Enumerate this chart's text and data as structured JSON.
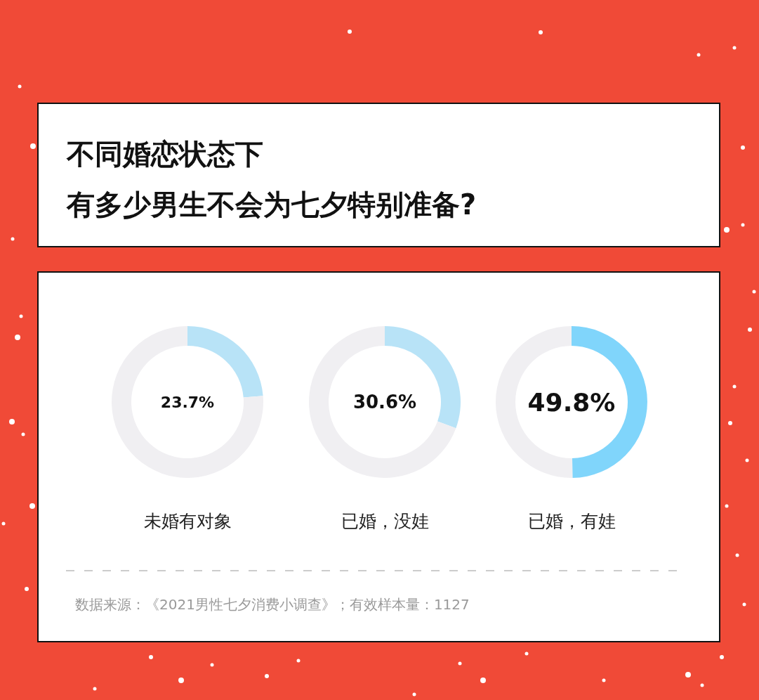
{
  "chart_data": [
    {
      "type": "other",
      "title": "不同婚恋状态下",
      "subtitle": "有多少男生不会为七夕特别准备?"
    },
    {
      "type": "donut",
      "title": "未婚有对象",
      "categories": [
        null,
        null
      ],
      "values": [
        23.7,
        76.3
      ],
      "colors": [
        "#b8e3f7",
        "#f0eff2"
      ],
      "value_labels": [
        "23.7%",
        null
      ]
    },
    {
      "type": "donut",
      "title": "已婚，没娃",
      "categories": [
        null,
        null
      ],
      "values": [
        30.6,
        69.4
      ],
      "colors": [
        "#b8e3f7",
        "#f0eff2"
      ],
      "value_labels": [
        "30.6%",
        null
      ]
    },
    {
      "type": "donut",
      "title": "已婚，有娃",
      "categories": [
        null,
        null
      ],
      "values": [
        49.8,
        50.2
      ],
      "colors": [
        "#80d5fb",
        "#f0eff2"
      ],
      "value_labels": [
        "49.8%",
        null
      ]
    },
    {
      "type": "other",
      "annotations": [
        "数据来源：《2021男性七夕消费小调查》；有效样本量：1127"
      ]
    }
  ]
}
